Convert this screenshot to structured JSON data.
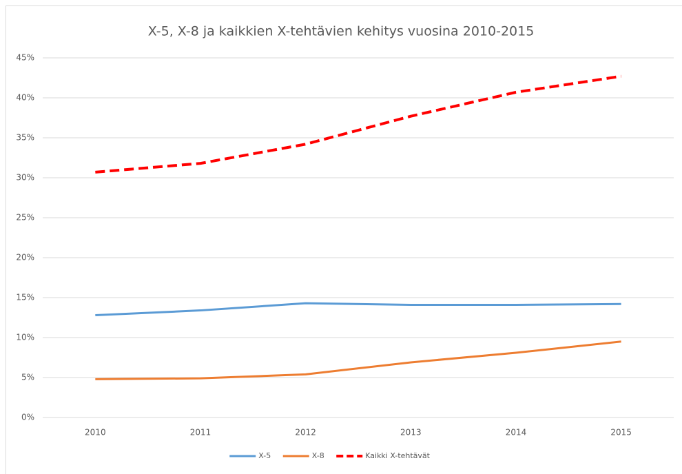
{
  "chart_data": {
    "type": "line",
    "title": "X-5, X-8 ja kaikkien X-tehtävien kehitys vuosina 2010-2015",
    "categories": [
      "2010",
      "2011",
      "2012",
      "2013",
      "2014",
      "2015"
    ],
    "series": [
      {
        "name": "X-5",
        "color": "#5b9bd5",
        "line_style": "solid",
        "values": [
          12.8,
          13.4,
          14.3,
          14.1,
          14.1,
          14.2
        ]
      },
      {
        "name": "X-8",
        "color": "#ed7d31",
        "line_style": "solid",
        "values": [
          4.8,
          4.9,
          5.4,
          6.9,
          8.1,
          9.5
        ]
      },
      {
        "name": "Kaikki X-tehtävät",
        "color": "#ff0000",
        "line_style": "dashed",
        "values": [
          30.7,
          31.8,
          34.2,
          37.7,
          40.7,
          42.7
        ]
      }
    ],
    "ylim": [
      0,
      45
    ],
    "yticks": [
      {
        "value": 0,
        "label": "0%"
      },
      {
        "value": 5,
        "label": "5%"
      },
      {
        "value": 10,
        "label": "10%"
      },
      {
        "value": 15,
        "label": "15%"
      },
      {
        "value": 20,
        "label": "20%"
      },
      {
        "value": 25,
        "label": "25%"
      },
      {
        "value": 30,
        "label": "30%"
      },
      {
        "value": 35,
        "label": "35%"
      },
      {
        "value": 40,
        "label": "40%"
      },
      {
        "value": 45,
        "label": "45%"
      }
    ],
    "grid": true,
    "legend": "bottom"
  }
}
